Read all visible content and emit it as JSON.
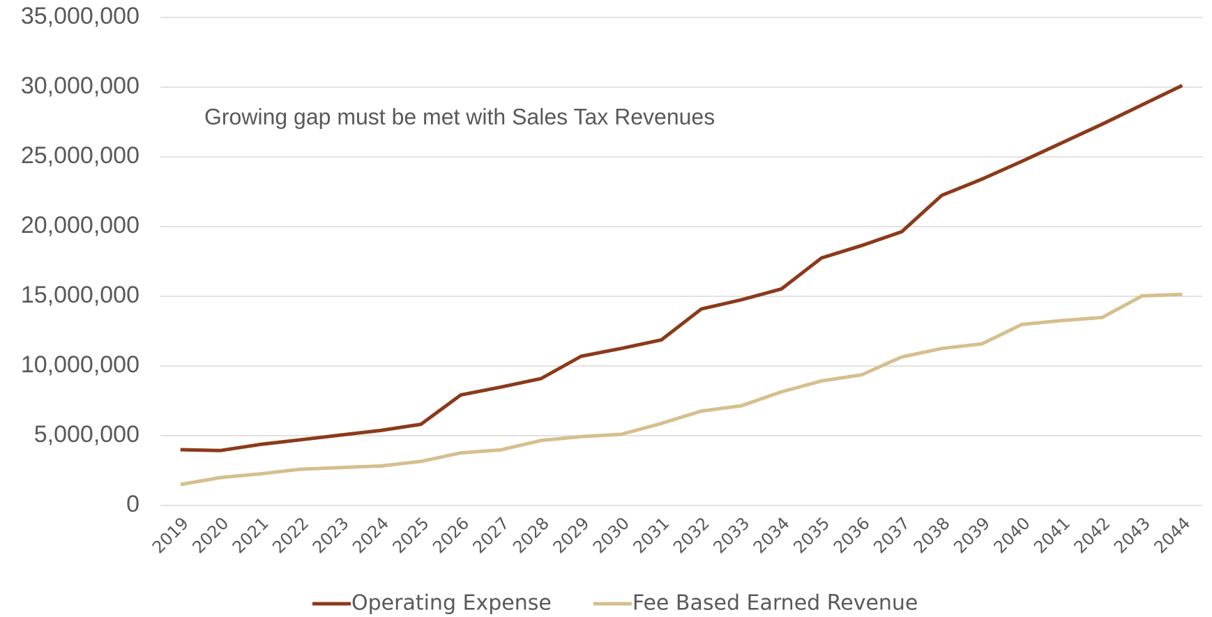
{
  "chart_data": {
    "type": "line",
    "annotation": "Growing gap must be met with Sales Tax Revenues",
    "categories": [
      "2019",
      "2020",
      "2021",
      "2022",
      "2023",
      "2024",
      "2025",
      "2026",
      "2027",
      "2028",
      "2029",
      "2030",
      "2031",
      "2032",
      "2033",
      "2034",
      "2035",
      "2036",
      "2037",
      "2038",
      "2039",
      "2040",
      "2041",
      "2042",
      "2043",
      "2044"
    ],
    "series": [
      {
        "name": "Operating Expense",
        "color": "#8b3a1a",
        "values": [
          4000000,
          3940000,
          4380000,
          4710000,
          5050000,
          5380000,
          5820000,
          7930000,
          8490000,
          9100000,
          10700000,
          11260000,
          11870000,
          14090000,
          14750000,
          15530000,
          17750000,
          18640000,
          19630000,
          22240000,
          23400000,
          24680000,
          26010000,
          27340000,
          28730000,
          30120000
        ]
      },
      {
        "name": "Fee Based Earned Revenue",
        "color": "#d6bf8e",
        "values": [
          1500000,
          2000000,
          2270000,
          2600000,
          2720000,
          2830000,
          3160000,
          3770000,
          3990000,
          4660000,
          4940000,
          5100000,
          5880000,
          6770000,
          7150000,
          8150000,
          8930000,
          9370000,
          10650000,
          11260000,
          11590000,
          12980000,
          13260000,
          13480000,
          15030000,
          15140000
        ]
      }
    ],
    "ylim": [
      0,
      35000000
    ],
    "yticks": [
      0,
      {
        "value": 5000000,
        "label": "5,000,000"
      },
      {
        "value": 10000000,
        "label": "10,000,000"
      },
      {
        "value": 15000000,
        "label": "15,000,000"
      },
      {
        "value": 20000000,
        "label": "20,000,000"
      },
      {
        "value": 25000000,
        "label": "25,000,000"
      },
      {
        "value": 30000000,
        "label": "30,000,000"
      },
      {
        "value": 35000000,
        "label": "35,000,000"
      }
    ],
    "grid": true,
    "legend": "bottom"
  }
}
